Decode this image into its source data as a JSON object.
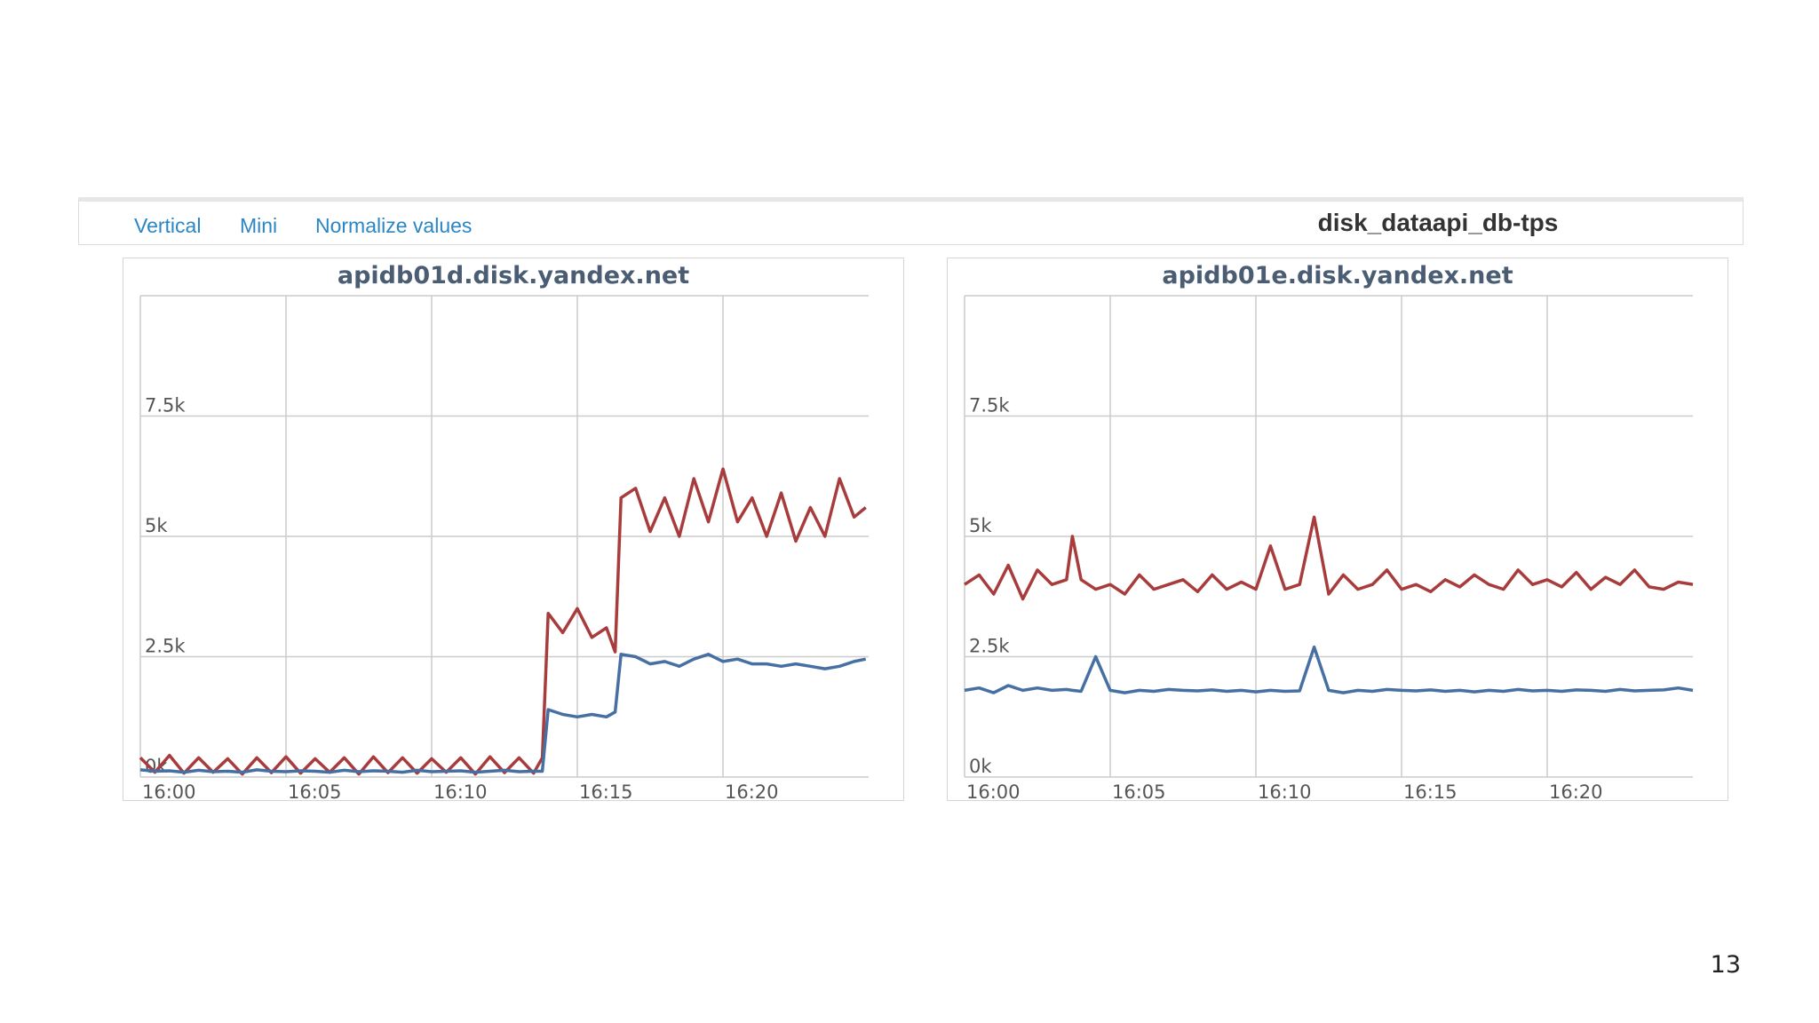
{
  "toolbar": {
    "links": [
      "Vertical",
      "Mini",
      "Normalize values"
    ],
    "title": "disk_dataapi_db-tps"
  },
  "page_number": "13",
  "colors": {
    "series_red": "#a83c3c",
    "series_blue": "#4670a3",
    "grid": "#cccccc",
    "link": "#2a86c4"
  },
  "chart_data": [
    {
      "type": "line",
      "title": "apidb01d.disk.yandex.net",
      "xlabel": "",
      "ylabel": "",
      "x_ticks": [
        "16:00",
        "16:05",
        "16:10",
        "16:15",
        "16:20"
      ],
      "y_ticks": [
        "7.5k",
        "5k",
        "2.5k",
        "0k"
      ],
      "xlim": [
        0,
        25
      ],
      "ylim": [
        0,
        10000
      ],
      "grid": true,
      "x": [
        0,
        0.5,
        1,
        1.5,
        2,
        2.5,
        3,
        3.5,
        4,
        4.5,
        5,
        5.5,
        6,
        6.5,
        7,
        7.5,
        8,
        8.5,
        9,
        9.5,
        10,
        10.5,
        11,
        11.5,
        12,
        12.5,
        13,
        13.5,
        13.8,
        14,
        14.5,
        15,
        15.5,
        16,
        16.3,
        16.5,
        17,
        17.5,
        18,
        18.5,
        19,
        19.5,
        20,
        20.5,
        21,
        21.5,
        22,
        22.5,
        23,
        23.5,
        24,
        24.5,
        24.9
      ],
      "series": [
        {
          "values": [
            400,
            100,
            450,
            80,
            400,
            100,
            380,
            60,
            400,
            90,
            420,
            80,
            380,
            100,
            400,
            60,
            420,
            90,
            400,
            80,
            380,
            100,
            400,
            60,
            420,
            90,
            400,
            80,
            400,
            3400,
            3000,
            3500,
            2900,
            3100,
            2600,
            5800,
            6000,
            5100,
            5800,
            5000,
            6200,
            5300,
            6400,
            5300,
            5800,
            5000,
            5900,
            4900,
            5600,
            5000,
            6200,
            5400,
            5600
          ]
        },
        {
          "values": [
            150,
            120,
            130,
            100,
            140,
            110,
            120,
            100,
            150,
            120,
            110,
            130,
            120,
            100,
            140,
            110,
            130,
            120,
            100,
            140,
            110,
            120,
            130,
            100,
            120,
            140,
            110,
            120,
            120,
            1400,
            1300,
            1250,
            1300,
            1250,
            1350,
            2550,
            2500,
            2350,
            2400,
            2300,
            2450,
            2550,
            2400,
            2450,
            2350,
            2350,
            2300,
            2350,
            2300,
            2250,
            2300,
            2400,
            2450
          ]
        }
      ]
    },
    {
      "type": "line",
      "title": "apidb01e.disk.yandex.net",
      "xlabel": "",
      "ylabel": "",
      "x_ticks": [
        "16:00",
        "16:05",
        "16:10",
        "16:15",
        "16:20"
      ],
      "y_ticks": [
        "7.5k",
        "5k",
        "2.5k",
        "0k"
      ],
      "xlim": [
        0,
        25
      ],
      "ylim": [
        0,
        10000
      ],
      "grid": true,
      "x": [
        0,
        0.5,
        1,
        1.5,
        2,
        2.5,
        3,
        3.5,
        3.7,
        4,
        4.5,
        5,
        5.5,
        6,
        6.5,
        7,
        7.5,
        8,
        8.5,
        9,
        9.5,
        10,
        10.5,
        11,
        11.5,
        12,
        12.5,
        13,
        13.5,
        14,
        14.5,
        15,
        15.5,
        16,
        16.5,
        17,
        17.5,
        18,
        18.5,
        19,
        19.5,
        20,
        20.5,
        21,
        21.5,
        22,
        22.5,
        23,
        23.5,
        24,
        24.5,
        25
      ],
      "series": [
        {
          "values": [
            4000,
            4200,
            3800,
            4400,
            3700,
            4300,
            4000,
            4100,
            5000,
            4100,
            3900,
            4000,
            3800,
            4200,
            3900,
            4000,
            4100,
            3850,
            4200,
            3900,
            4050,
            3900,
            4800,
            3900,
            4000,
            5400,
            3800,
            4200,
            3900,
            4000,
            4300,
            3900,
            4000,
            3850,
            4100,
            3950,
            4200,
            4000,
            3900,
            4300,
            4000,
            4100,
            3950,
            4250,
            3900,
            4150,
            4000,
            4300,
            3950,
            3900,
            4050,
            4000
          ]
        },
        {
          "values": [
            1800,
            1850,
            1750,
            1900,
            1800,
            1850,
            1800,
            1820,
            1800,
            1780,
            2500,
            1800,
            1750,
            1800,
            1780,
            1820,
            1800,
            1790,
            1810,
            1780,
            1800,
            1770,
            1800,
            1780,
            1790,
            2700,
            1800,
            1750,
            1800,
            1780,
            1820,
            1800,
            1790,
            1810,
            1780,
            1800,
            1770,
            1800,
            1780,
            1820,
            1790,
            1800,
            1780,
            1810,
            1800,
            1780,
            1820,
            1790,
            1800,
            1810,
            1850,
            1800
          ]
        }
      ]
    }
  ]
}
